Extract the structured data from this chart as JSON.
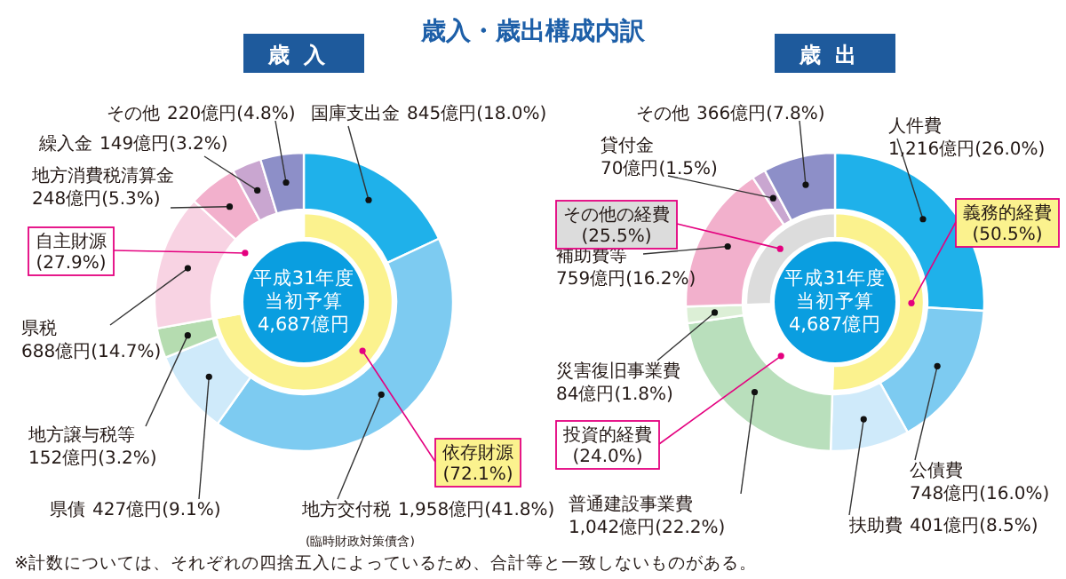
{
  "chart_data": [
    {
      "type": "donut",
      "title": "歳入・歳出構成内訳",
      "subtitle": "歳入",
      "categories": [
        "国庫支出金",
        "地方交付税",
        "県債",
        "地方譲与税等",
        "県税",
        "地方消費税清算金",
        "繰入金",
        "その他"
      ],
      "values": [
        845,
        1958,
        427,
        152,
        688,
        248,
        149,
        220
      ],
      "value_labels": [
        "845億円(18.0%)",
        "1,958億円(41.8%)",
        "427億円(9.1%)",
        "152億円(3.2%)",
        "688億円(14.7%)",
        "248億円(5.3%)",
        "149億円(3.2%)",
        "220億円(4.8%)"
      ],
      "colors": [
        "#1fb1ea",
        "#7dcbf1",
        "#cfeafa",
        "#b5dcb0",
        "#f8d3e3",
        "#f2b0cc",
        "#c9a6d0",
        "#8d8fc8"
      ],
      "annotations": [
        "平成31年度",
        "当初予算",
        "4,687億円",
        "(臨時財政対策債含)",
        "※計数については、それぞれの四捨五入によっているため、合計等と一致しないものがある。"
      ]
    },
    {
      "type": "donut",
      "categories": [
        "依存財源",
        "自主財源"
      ],
      "values": [
        72.1,
        27.9
      ],
      "value_labels": [
        "(72.1%)",
        "(27.9%)"
      ],
      "colors": [
        "#fbf28e",
        "#ffffff"
      ]
    },
    {
      "type": "donut",
      "title": "歳出",
      "categories": [
        "人件費",
        "公債費",
        "扶助費",
        "普通建設事業費",
        "災害復旧事業費",
        "補助費等",
        "貸付金",
        "その他"
      ],
      "values": [
        1216,
        748,
        401,
        1042,
        84,
        759,
        70,
        366
      ],
      "value_labels": [
        "1,216億円(26.0%)",
        "748億円(16.0%)",
        "401億円(8.5%)",
        "1,042億円(22.2%)",
        "84億円(1.8%)",
        "759億円(16.2%)",
        "70億円(1.5%)",
        "366億円(7.8%)"
      ],
      "colors": [
        "#1fb1ea",
        "#7dcbf1",
        "#cfeafa",
        "#b9dfbc",
        "#dcefd6",
        "#f2b0cc",
        "#c9a6d0",
        "#8d8fc8"
      ],
      "annotations": [
        "平成31年度",
        "当初予算",
        "4,687億円"
      ]
    },
    {
      "type": "donut",
      "categories": [
        "義務的経費",
        "投資的経費",
        "その他の経費"
      ],
      "values": [
        50.5,
        24.0,
        25.5
      ],
      "value_labels": [
        "(50.5%)",
        "(24.0%)",
        "(25.5%)"
      ],
      "colors": [
        "#fbf28e",
        "#ffffff",
        "#dcdcdc"
      ]
    }
  ]
}
